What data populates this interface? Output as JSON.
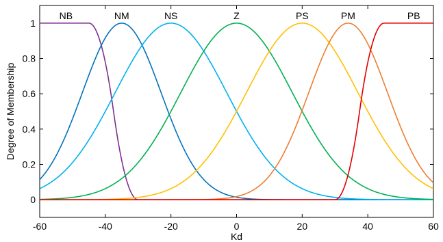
{
  "chart_data": {
    "type": "line",
    "title": "",
    "xlabel": "Kd",
    "ylabel": "Degree of Membership",
    "xlim": [
      -60,
      60
    ],
    "ylim": [
      -0.1,
      1.1
    ],
    "x_ticks": [
      -60,
      -40,
      -20,
      0,
      20,
      40,
      60
    ],
    "y_ticks": [
      0,
      0.2,
      0.4,
      0.6,
      0.8,
      1
    ],
    "grid": false,
    "legend": "none",
    "series": [
      {
        "name": "NB",
        "label_x": -52,
        "color": "#7e2f8e",
        "shape": "zmf",
        "params": [
          -45,
          -30
        ]
      },
      {
        "name": "NM",
        "label_x": -35,
        "color": "#0072bd",
        "shape": "gauss",
        "params": [
          12,
          -35
        ]
      },
      {
        "name": "NS",
        "label_x": -20,
        "color": "#00b0f0",
        "shape": "gauss",
        "params": [
          17,
          -20
        ]
      },
      {
        "name": "Z",
        "label_x": 0,
        "color": "#00b050",
        "shape": "gauss",
        "params": [
          17,
          0
        ]
      },
      {
        "name": "PS",
        "label_x": 20,
        "color": "#ffc000",
        "shape": "gauss",
        "params": [
          17,
          20
        ]
      },
      {
        "name": "PM",
        "label_x": 34,
        "color": "#ed7d31",
        "shape": "gauss",
        "params": [
          12,
          34
        ]
      },
      {
        "name": "PB",
        "label_x": 54,
        "color": "#e00000",
        "shape": "smf",
        "params": [
          30,
          45
        ]
      }
    ]
  }
}
